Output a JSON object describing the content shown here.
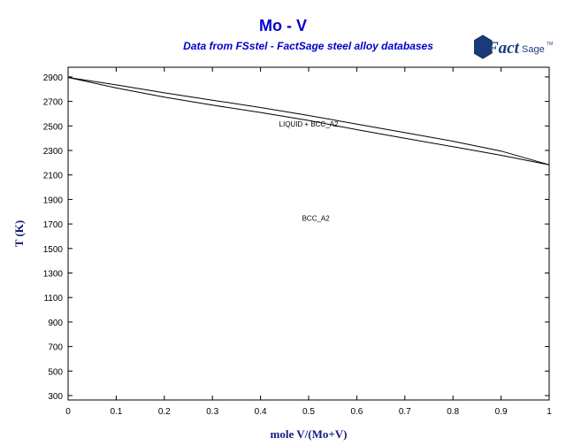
{
  "chart_data": {
    "type": "line",
    "title": "Mo - V",
    "subtitle": "Data from FSstel - FactSage steel alloy databases",
    "xlabel": "mole V/(Mo+V)",
    "ylabel": "T (K)",
    "xlim": [
      0,
      1
    ],
    "ylim": [
      300,
      3000
    ],
    "xticks": [
      0,
      0.1,
      0.2,
      0.3,
      0.4,
      0.5,
      0.6,
      0.7,
      0.8,
      0.9,
      1
    ],
    "yticks": [
      300,
      500,
      700,
      900,
      1100,
      1300,
      1500,
      1700,
      1900,
      2100,
      2300,
      2500,
      2700,
      2900
    ],
    "series": [
      {
        "x": [
          0,
          0.1,
          0.2,
          0.3,
          0.4,
          0.5,
          0.6,
          0.7,
          0.8,
          0.9,
          1
        ],
        "y": [
          2896,
          2835,
          2770,
          2710,
          2650,
          2585,
          2515,
          2445,
          2375,
          2295,
          2183
        ]
      },
      {
        "x": [
          0,
          0.1,
          0.2,
          0.3,
          0.4,
          0.5,
          0.6,
          0.7,
          0.8,
          0.9,
          1
        ],
        "y": [
          2896,
          2810,
          2735,
          2670,
          2610,
          2545,
          2470,
          2400,
          2330,
          2260,
          2183
        ]
      }
    ],
    "annotations": [
      {
        "text": "LIQUID + BCC_A2",
        "x": 0.5,
        "y": 2495
      },
      {
        "text": "BCC_A2",
        "x": 0.515,
        "y": 1725
      }
    ],
    "grid": false,
    "legend": "none"
  },
  "logo": {
    "text": "FactSage",
    "trademark": "TM",
    "color": "#1a3b7a"
  }
}
